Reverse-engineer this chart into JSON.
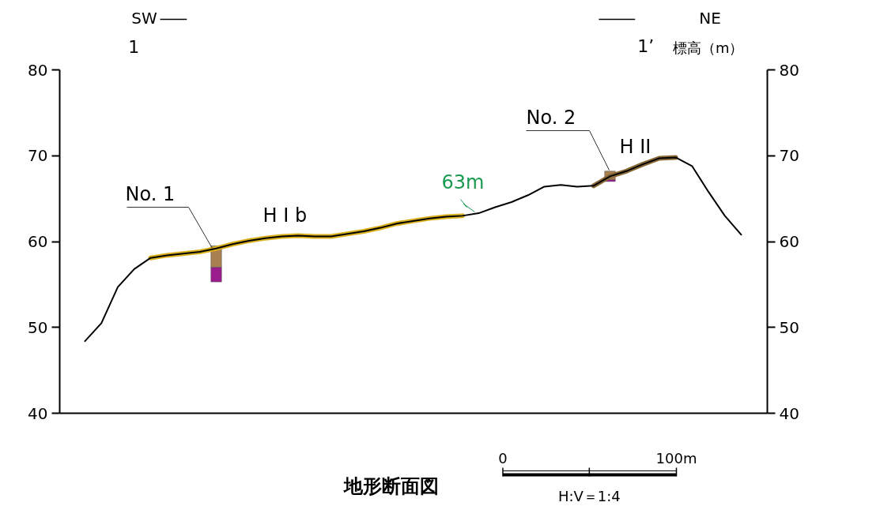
{
  "chart_data": {
    "type": "line",
    "title": "地形断面図",
    "y2label": "標高（m）",
    "categories": [
      null,
      null,
      null,
      null,
      null,
      null,
      null,
      null,
      null,
      null,
      null,
      null,
      null,
      null,
      null,
      null,
      null,
      null,
      null,
      null,
      null,
      null,
      null,
      null,
      null,
      null,
      null,
      null,
      null,
      null,
      null,
      null,
      null,
      null,
      null,
      null,
      null,
      null,
      null,
      null,
      null
    ],
    "series": [
      {
        "color": "#d9b020",
        "values": [
          null,
          null,
          null,
          null,
          58.1,
          58.4,
          58.6,
          58.8,
          59.2,
          59.7,
          60.1,
          60.4,
          60.6,
          60.7,
          60.6,
          60.6,
          60.9,
          61.2,
          61.6,
          62.1,
          62.4,
          62.7,
          62.9,
          63.0,
          null,
          null,
          null,
          null,
          null,
          null,
          null,
          null,
          null,
          null,
          null,
          null,
          null,
          null,
          null,
          null,
          null
        ]
      },
      {
        "color": "#8b6a3a",
        "values": [
          null,
          null,
          null,
          null,
          null,
          null,
          null,
          null,
          null,
          null,
          null,
          null,
          null,
          null,
          null,
          null,
          null,
          null,
          null,
          null,
          null,
          null,
          null,
          null,
          null,
          null,
          null,
          null,
          null,
          null,
          null,
          66.5,
          67.6,
          68.2,
          69.0,
          69.7,
          69.8,
          null,
          null,
          null,
          null
        ]
      },
      {
        "color": "#000000",
        "values": [
          48.4,
          50.5,
          54.7,
          56.8,
          58.1,
          58.4,
          58.6,
          58.8,
          59.2,
          59.7,
          60.1,
          60.4,
          60.6,
          60.7,
          60.6,
          60.6,
          60.9,
          61.2,
          61.6,
          62.1,
          62.4,
          62.7,
          62.9,
          63.0,
          63.3,
          64.0,
          64.6,
          65.4,
          66.4,
          66.6,
          66.4,
          66.5,
          67.6,
          68.2,
          69.0,
          69.7,
          69.8,
          68.8,
          65.8,
          63.0,
          60.8
        ]
      },
      {
        "type": "bar",
        "color": "#a88050",
        "base": [
          null,
          null,
          null,
          null,
          null,
          null,
          null,
          null,
          57.0,
          null,
          null,
          null,
          null,
          null,
          null,
          null,
          null,
          null,
          null,
          null,
          null,
          null,
          null,
          null,
          null,
          null,
          null,
          null,
          null,
          null,
          null,
          null,
          67.2,
          null,
          null,
          null,
          null,
          null,
          null,
          null,
          null
        ],
        "values": [
          null,
          null,
          null,
          null,
          null,
          null,
          null,
          null,
          2.5,
          null,
          null,
          null,
          null,
          null,
          null,
          null,
          null,
          null,
          null,
          null,
          null,
          null,
          null,
          null,
          null,
          null,
          null,
          null,
          null,
          null,
          null,
          null,
          1.0,
          null,
          null,
          null,
          null,
          null,
          null,
          null,
          null
        ]
      },
      {
        "type": "bar",
        "color": "#9b1c8c",
        "base": [
          null,
          null,
          null,
          null,
          null,
          null,
          null,
          null,
          55.3,
          null,
          null,
          null,
          null,
          null,
          null,
          null,
          null,
          null,
          null,
          null,
          null,
          null,
          null,
          null,
          null,
          null,
          null,
          null,
          null,
          null,
          null,
          null,
          67.0,
          null,
          null,
          null,
          null,
          null,
          null,
          null,
          null
        ],
        "values": [
          null,
          null,
          null,
          null,
          null,
          null,
          null,
          null,
          1.7,
          null,
          null,
          null,
          null,
          null,
          null,
          null,
          null,
          null,
          null,
          null,
          null,
          null,
          null,
          null,
          null,
          null,
          null,
          null,
          null,
          null,
          null,
          null,
          0.2,
          null,
          null,
          null,
          null,
          null,
          null,
          null,
          null
        ]
      }
    ],
    "ylim": [
      40,
      80
    ],
    "yticks": [
      40,
      50,
      60,
      70,
      80
    ],
    "y2lim": [
      40,
      80
    ],
    "y2ticks": [
      40,
      50,
      60,
      70,
      80
    ],
    "tick_labels": "y",
    "grid": false,
    "annotations": [
      "SW",
      "NE",
      "1",
      "1’",
      "No. 1",
      "No. 2",
      "H I b",
      "H II",
      "63m",
      "0",
      "100m",
      "H:V＝1:4"
    ]
  }
}
